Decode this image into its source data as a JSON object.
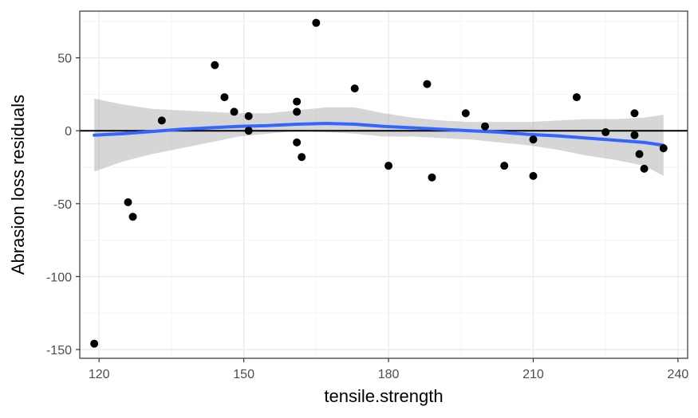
{
  "chart_data": {
    "type": "scatter",
    "title": "",
    "xlabel": "tensile.strength",
    "ylabel": "Abrasion loss residuals",
    "xlim": [
      116,
      242
    ],
    "ylim": [
      -156,
      82
    ],
    "x_ticks": [
      120,
      150,
      180,
      210,
      240
    ],
    "x_tick_labels": [
      "120",
      "150",
      "180",
      "210",
      "240"
    ],
    "y_ticks": [
      -150,
      -100,
      -50,
      0,
      50
    ],
    "y_tick_labels": [
      "-150",
      "-100",
      "-50",
      "0",
      "50"
    ],
    "grid": true,
    "legend": "none",
    "reference_line": {
      "y": 0
    },
    "points": {
      "x": [
        119,
        126,
        127,
        133,
        144,
        146,
        148,
        151,
        151,
        161,
        161,
        161,
        162,
        165,
        173,
        180,
        188,
        189,
        196,
        200,
        204,
        210,
        210,
        219,
        225,
        231,
        231,
        232,
        233,
        237
      ],
      "y": [
        -146,
        -49,
        -59,
        7,
        45,
        23,
        13,
        10,
        0,
        20,
        13,
        -8,
        -18,
        74,
        29,
        -24,
        32,
        -32,
        12,
        3,
        -24,
        -6,
        -31,
        23,
        -1,
        12,
        -3,
        -16,
        -26,
        -12
      ]
    },
    "smooth": {
      "x": [
        119,
        125,
        131,
        137,
        143,
        149,
        155,
        161,
        167,
        173,
        179,
        185,
        191,
        197,
        203,
        209,
        215,
        221,
        227,
        233,
        237
      ],
      "y": [
        -3,
        -2,
        -0.5,
        1,
        2,
        3,
        3.5,
        4.5,
        5,
        4.5,
        3,
        2,
        1,
        0,
        -1,
        -2.5,
        -3.5,
        -5,
        -6.5,
        -8,
        -10
      ],
      "lower": [
        -28,
        -21,
        -16,
        -12,
        -8,
        -4,
        -2,
        0,
        -1,
        -2,
        -4,
        -4,
        -5,
        -6,
        -8,
        -10,
        -13,
        -17,
        -20,
        -24,
        -31
      ],
      "upper": [
        22,
        18,
        15,
        14,
        13,
        12,
        12,
        14,
        16,
        16,
        12,
        9,
        7,
        6,
        6,
        6,
        7,
        8,
        8,
        9,
        11
      ],
      "color": "#3366FF",
      "band_color": "#999999"
    },
    "point_color": "#000000"
  }
}
